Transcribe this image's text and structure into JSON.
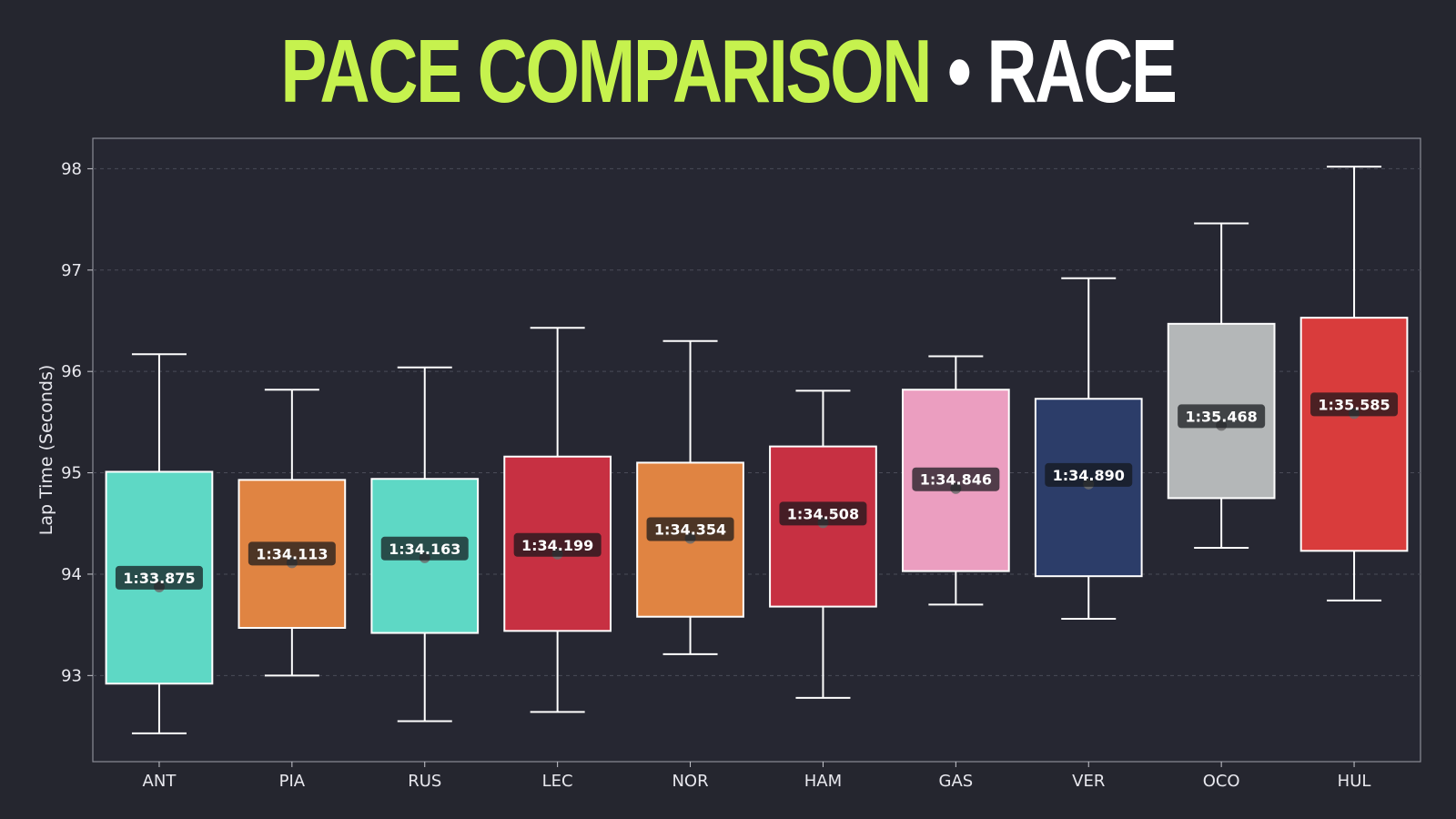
{
  "title": {
    "main": "PACE COMPARISON",
    "separator": "•",
    "sub": "RACE"
  },
  "colors": {
    "title_accent": "#c6f24e",
    "background": "#25262f",
    "plot_background": "#262732"
  },
  "chart_data": {
    "type": "box",
    "ylabel": "Lap Time (Seconds)",
    "xlabel": "",
    "ylim": [
      92.15,
      98.3
    ],
    "yticks": [
      93,
      94,
      95,
      96,
      97,
      98
    ],
    "grid": true,
    "categories": [
      "ANT",
      "PIA",
      "RUS",
      "LEC",
      "NOR",
      "HAM",
      "GAS",
      "VER",
      "OCO",
      "HUL"
    ],
    "boxes": [
      {
        "driver": "ANT",
        "min": 92.43,
        "q1": 92.92,
        "median": 93.875,
        "q3": 95.01,
        "max": 96.17,
        "label": "1:33.875",
        "color": "#5ed8c5"
      },
      {
        "driver": "PIA",
        "min": 93.0,
        "q1": 93.47,
        "median": 94.113,
        "q3": 94.93,
        "max": 95.82,
        "label": "1:34.113",
        "color": "#e08442"
      },
      {
        "driver": "RUS",
        "min": 92.55,
        "q1": 93.42,
        "median": 94.163,
        "q3": 94.94,
        "max": 96.04,
        "label": "1:34.163",
        "color": "#5ed8c5"
      },
      {
        "driver": "LEC",
        "min": 92.64,
        "q1": 93.44,
        "median": 94.199,
        "q3": 95.16,
        "max": 96.43,
        "label": "1:34.199",
        "color": "#c73042"
      },
      {
        "driver": "NOR",
        "min": 93.21,
        "q1": 93.58,
        "median": 94.354,
        "q3": 95.1,
        "max": 96.3,
        "label": "1:34.354",
        "color": "#e08442"
      },
      {
        "driver": "HAM",
        "min": 92.78,
        "q1": 93.68,
        "median": 94.508,
        "q3": 95.26,
        "max": 95.81,
        "label": "1:34.508",
        "color": "#c73042"
      },
      {
        "driver": "GAS",
        "min": 93.7,
        "q1": 94.03,
        "median": 94.846,
        "q3": 95.82,
        "max": 96.15,
        "label": "1:34.846",
        "color": "#eb9ec0"
      },
      {
        "driver": "VER",
        "min": 93.56,
        "q1": 93.98,
        "median": 94.89,
        "q3": 95.73,
        "max": 96.92,
        "label": "1:34.890",
        "color": "#2c3d69"
      },
      {
        "driver": "OCO",
        "min": 94.26,
        "q1": 94.75,
        "median": 95.468,
        "q3": 96.47,
        "max": 97.46,
        "label": "1:35.468",
        "color": "#b4b7b8"
      },
      {
        "driver": "HUL",
        "min": 93.74,
        "q1": 94.23,
        "median": 95.585,
        "q3": 96.53,
        "max": 98.02,
        "label": "1:35.585",
        "color": "#d93c3c"
      }
    ]
  }
}
